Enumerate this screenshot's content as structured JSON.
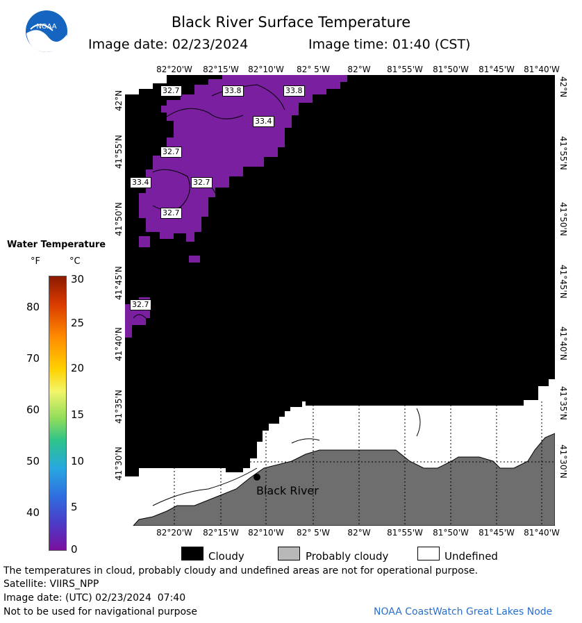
{
  "header": {
    "logo": "NOAA",
    "title": "Black River Surface Temperature",
    "image_date": "Image date: 02/23/2024",
    "image_time": "Image time: 01:40 (CST)"
  },
  "map": {
    "lon_ticks": [
      "82°20'W",
      "82°15'W",
      "82°10'W",
      "82° 5'W",
      "82°W",
      "81°55'W",
      "81°50'W",
      "81°45'W",
      "81°40'W"
    ],
    "lat_ticks": [
      "42°N",
      "41°55'N",
      "41°50'N",
      "41°45'N",
      "41°40'N",
      "41°35'N",
      "41°30'N"
    ],
    "temp_labels": [
      "32.7",
      "33.8",
      "33.8",
      "33.4",
      "32.7",
      "33.4",
      "32.7",
      "32.7",
      "32.7"
    ],
    "place_label": "Black River",
    "colors": {
      "cloudy": "#000000",
      "land": "#6e6e6e",
      "water_cold": "#7a1fa0",
      "undefined": "#ffffff"
    }
  },
  "colorbar": {
    "title": "Water Temperature",
    "unit_f": "°F",
    "unit_c": "°C",
    "f_ticks": [
      "80",
      "70",
      "60",
      "50",
      "40"
    ],
    "c_ticks": [
      "30",
      "25",
      "20",
      "15",
      "10",
      "5",
      "0"
    ]
  },
  "legend": {
    "cloudy": "Cloudy",
    "probably_cloudy": "Probably cloudy",
    "undefined": "Undefined"
  },
  "footer": {
    "disclaimer": "The temperatures in cloud, probably cloudy and undefined areas are not for operational purpose.",
    "satellite": "Satellite: VIIRS_NPP",
    "utc_date": "Image date: (UTC) 02/23/2024  07:40",
    "nav_warning": "Not to be used for navigational purpose",
    "credit": "NOAA CoastWatch Great Lakes Node"
  }
}
